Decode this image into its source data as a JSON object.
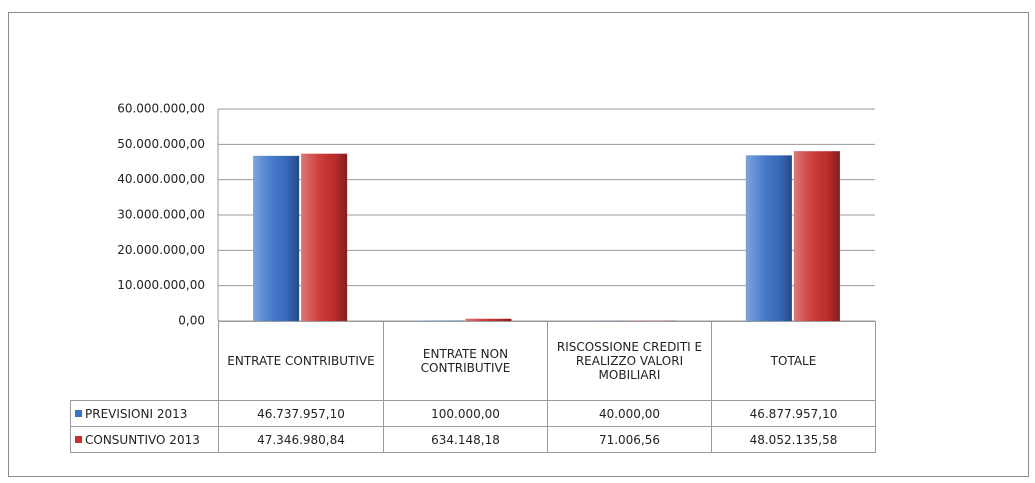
{
  "chart_data": {
    "type": "bar",
    "categories": [
      "ENTRATE CONTRIBUTIVE",
      "ENTRATE NON CONTRIBUTIVE",
      "RISCOSSIONE CREDITI E REALIZZO VALORI MOBILIARI",
      "TOTALE"
    ],
    "series": [
      {
        "name": "PREVISIONI 2013",
        "color": "#3a72c8",
        "values": [
          46737957.1,
          100000.0,
          40000.0,
          46877957.1
        ],
        "value_labels": [
          "46.737.957,10",
          "100.000,00",
          "40.000,00",
          "46.877.957,10"
        ]
      },
      {
        "name": "CONSUNTIVO 2013",
        "color": "#c9302f",
        "values": [
          47346980.84,
          634148.18,
          71006.56,
          48052135.58
        ],
        "value_labels": [
          "47.346.980,84",
          "634.148,18",
          "71.006,56",
          "48.052.135,58"
        ]
      }
    ],
    "ylim": [
      0,
      60000000
    ],
    "yticks": [
      {
        "value": 0,
        "label": "0,00"
      },
      {
        "value": 10000000,
        "label": "10.000.000,00"
      },
      {
        "value": 20000000,
        "label": "20.000.000,00"
      },
      {
        "value": 30000000,
        "label": "30.000.000,00"
      },
      {
        "value": 40000000,
        "label": "40.000.000,00"
      },
      {
        "value": 50000000,
        "label": "50.000.000,00"
      },
      {
        "value": 60000000,
        "label": "60.000.000,00"
      }
    ],
    "grid": true
  }
}
